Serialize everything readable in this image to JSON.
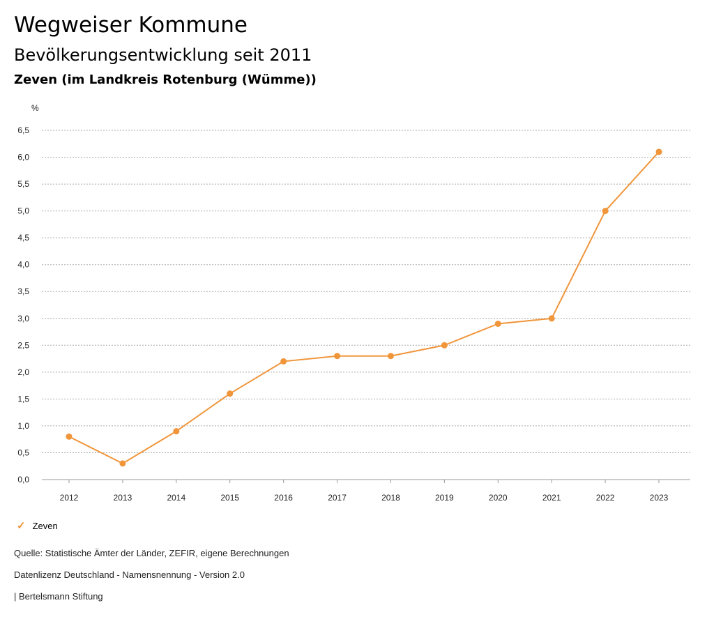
{
  "header": {
    "title": "Wegweiser Kommune",
    "subtitle": "Bevölkerungsentwicklung seit 2011",
    "region": "Zeven (im Landkreis Rotenburg (Wümme))"
  },
  "chart_data": {
    "type": "line",
    "ylabel": "%",
    "ylim": [
      0,
      6.5
    ],
    "yticks": [
      "0,0",
      "0,5",
      "1,0",
      "1,5",
      "2,0",
      "2,5",
      "3,0",
      "3,5",
      "4,0",
      "4,5",
      "5,0",
      "5,5",
      "6,0",
      "6,5"
    ],
    "categories": [
      "2012",
      "2013",
      "2014",
      "2015",
      "2016",
      "2017",
      "2018",
      "2019",
      "2020",
      "2021",
      "2022",
      "2023"
    ],
    "series": [
      {
        "name": "Zeven",
        "color": "#f0953a",
        "values": [
          0.8,
          0.3,
          0.9,
          1.6,
          2.2,
          2.3,
          2.3,
          2.5,
          2.9,
          3.0,
          5.0,
          6.1
        ]
      }
    ],
    "grid": true,
    "legend": "bottom-left"
  },
  "footer": {
    "source": "Quelle: Statistische Ämter der Länder, ZEFIR, eigene Berechnungen",
    "license": "Datenlizenz Deutschland - Namensnennung - Version 2.0",
    "brand": "| Bertelsmann Stiftung"
  }
}
